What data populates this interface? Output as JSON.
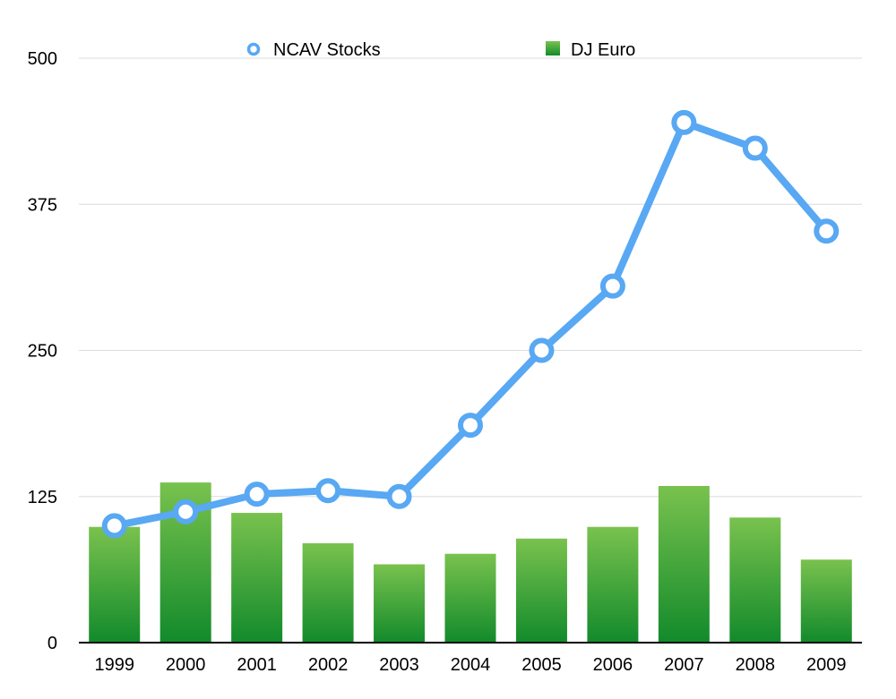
{
  "chart_data": {
    "type": "bar",
    "categories": [
      "1999",
      "2000",
      "2001",
      "2002",
      "2003",
      "2004",
      "2005",
      "2006",
      "2007",
      "2008",
      "2009"
    ],
    "series": [
      {
        "name": "NCAV Stocks",
        "type": "line",
        "color": "#58a8f3",
        "values": [
          100,
          112,
          127,
          130,
          125,
          186,
          250,
          305,
          445,
          423,
          352
        ]
      },
      {
        "name": "DJ Euro",
        "type": "bar",
        "color": "#3da83a",
        "values": [
          99,
          137,
          111,
          85,
          67,
          76,
          89,
          99,
          134,
          107,
          71
        ]
      }
    ],
    "y_ticks": [
      "0",
      "125",
      "250",
      "375",
      "500"
    ],
    "ylim": [
      0,
      500
    ],
    "grid": true,
    "legend_position": "top"
  }
}
